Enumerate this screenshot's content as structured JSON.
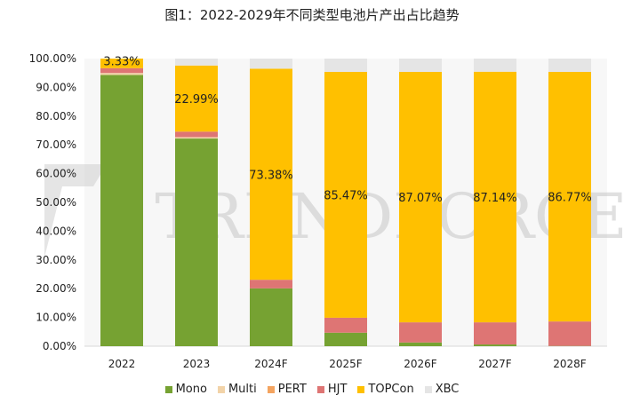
{
  "title": "图1：2022-2029年不同类型电池片产出占比趋势",
  "watermark": "TRENDFORCE",
  "chart_data": {
    "type": "bar",
    "stacked": true,
    "title": "图1：2022-2029年不同类型电池片产出占比趋势",
    "categories": [
      "2022",
      "2023",
      "2024F",
      "2025F",
      "2026F",
      "2027F",
      "2028F"
    ],
    "ylim": [
      0,
      100
    ],
    "yticks": [
      "0.00%",
      "10.00%",
      "20.00%",
      "30.00%",
      "40.00%",
      "50.00%",
      "60.00%",
      "70.00%",
      "80.00%",
      "90.00%",
      "100.00%"
    ],
    "legend_position": "bottom",
    "series": [
      {
        "name": "Mono",
        "color": "#76A232",
        "values": [
          94.3,
          72.2,
          20.1,
          4.7,
          1.3,
          0.6,
          0.1
        ]
      },
      {
        "name": "Multi",
        "color": "#F2D3A8",
        "values": [
          0.7,
          0.5,
          0,
          0,
          0,
          0,
          0
        ]
      },
      {
        "name": "PERT",
        "color": "#F4A460",
        "values": [
          0,
          0,
          0,
          0,
          0,
          0,
          0
        ]
      },
      {
        "name": "HJT",
        "color": "#DE7574",
        "values": [
          1.67,
          1.9,
          3.0,
          5.2,
          7.0,
          7.7,
          8.5
        ]
      },
      {
        "name": "TOPCon",
        "color": "#FFC000",
        "values": [
          3.33,
          22.99,
          73.38,
          85.47,
          87.07,
          87.14,
          86.77
        ]
      },
      {
        "name": "XBC",
        "color": "#E5E5E5",
        "values": [
          0,
          2.41,
          3.52,
          4.63,
          4.63,
          4.56,
          4.63
        ]
      }
    ],
    "data_labels": [
      "3.33%",
      "22.99%",
      "73.38%",
      "85.47%",
      "87.07%",
      "87.14%",
      "86.77%"
    ]
  }
}
